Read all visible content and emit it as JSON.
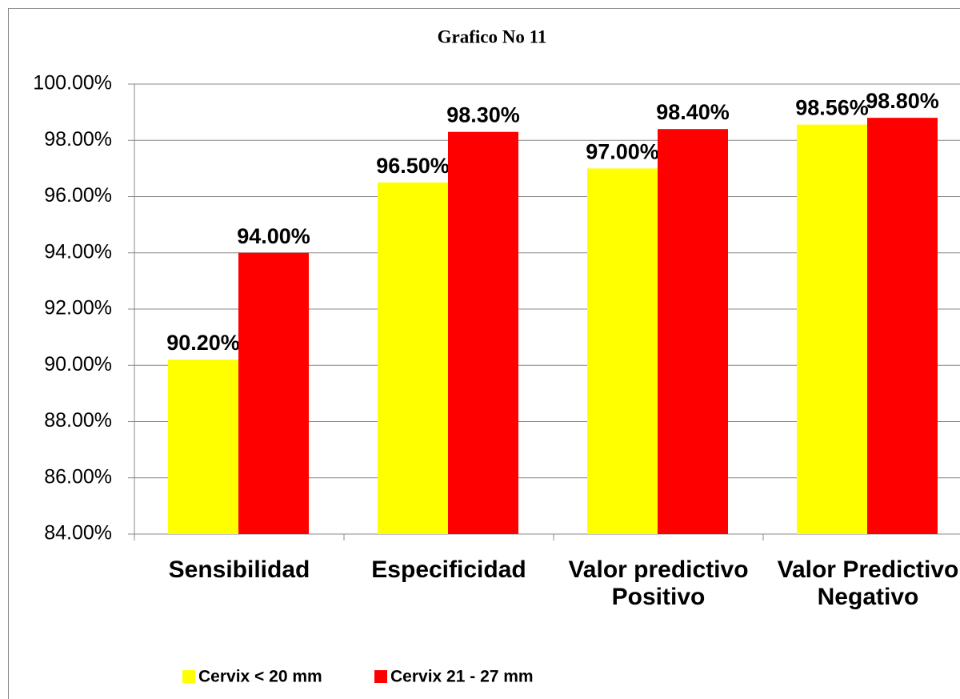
{
  "chart_data": {
    "type": "bar",
    "title": "Grafico No 11",
    "categories": [
      "Sensibilidad",
      "Especificidad",
      "Valor predictivo Positivo",
      "Valor Predictivo Negativo"
    ],
    "series": [
      {
        "name": "Cervix < 20 mm",
        "color": "#ffff00",
        "values": [
          90.2,
          96.5,
          97.0,
          98.56
        ],
        "value_labels": [
          "90.20%",
          "96.50%",
          "97.00%",
          "98.56%"
        ]
      },
      {
        "name": "Cervix 21 - 27 mm",
        "color": "#ff0000",
        "values": [
          94.0,
          98.3,
          98.4,
          98.8
        ],
        "value_labels": [
          "94.00%",
          "98.30%",
          "98.40%",
          "98.80%"
        ]
      }
    ],
    "ylim": [
      84,
      100
    ],
    "yticks": [
      {
        "value": 84,
        "label": "84.00%"
      },
      {
        "value": 86,
        "label": "86.00%"
      },
      {
        "value": 88,
        "label": "88.00%"
      },
      {
        "value": 90,
        "label": "90.00%"
      },
      {
        "value": 92,
        "label": "92.00%"
      },
      {
        "value": 94,
        "label": "94.00%"
      },
      {
        "value": 96,
        "label": "96.00%"
      },
      {
        "value": 98,
        "label": "98.00%"
      },
      {
        "value": 100,
        "label": "100.00%"
      }
    ],
    "grid": true,
    "legend": "bottom"
  }
}
